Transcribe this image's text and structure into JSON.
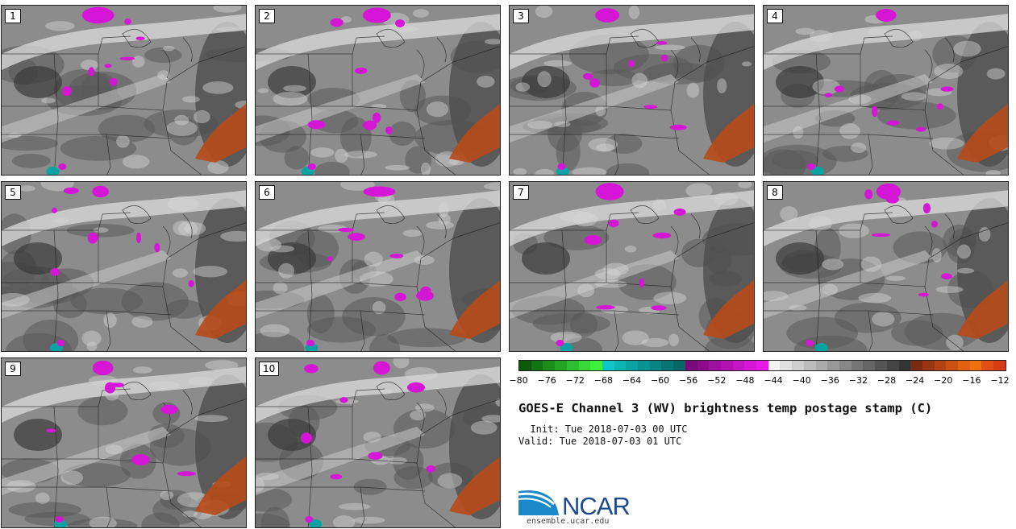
{
  "stamps": [
    {
      "label": "1"
    },
    {
      "label": "2"
    },
    {
      "label": "3"
    },
    {
      "label": "4"
    },
    {
      "label": "5"
    },
    {
      "label": "6"
    },
    {
      "label": "7"
    },
    {
      "label": "8"
    },
    {
      "label": "9"
    },
    {
      "label": "10"
    }
  ],
  "colorbar": {
    "tick_labels": [
      "−80",
      "−76",
      "−72",
      "−68",
      "−64",
      "−60",
      "−56",
      "−52",
      "−48",
      "−44",
      "−40",
      "−36",
      "−32",
      "−28",
      "−24",
      "−20",
      "−16",
      "−12"
    ],
    "colors": [
      "#0a5a0a",
      "#127312",
      "#1b8c1b",
      "#25a625",
      "#2ebf2e",
      "#36d936",
      "#3df03d",
      "#0ec6c6",
      "#0cb4b4",
      "#0aa3a3",
      "#099393",
      "#088484",
      "#077575",
      "#066767",
      "#7a0a7a",
      "#8c0c8c",
      "#9e109e",
      "#b212b2",
      "#c414c4",
      "#d616d6",
      "#e818e8",
      "#f2f2f2",
      "#e0e0e0",
      "#cecece",
      "#bcbcbc",
      "#aaaaaa",
      "#989898",
      "#878787",
      "#767676",
      "#656565",
      "#545454",
      "#444444",
      "#333333",
      "#7a2a10",
      "#963510",
      "#b24210",
      "#cc5010",
      "#e26010",
      "#f07010",
      "#e05014",
      "#d43c14"
    ]
  },
  "title": "GOES-E Channel 3 (WV) brightness temp postage stamp (C)",
  "init": "  Init: Tue 2018-07-03 00 UTC",
  "valid": "Valid: Tue 2018-07-03 01 UTC",
  "logo": {
    "text": "NCAR",
    "url": "ensemble.ucar.edu"
  },
  "palette": {
    "background_gray": "#8c8c8c",
    "moist_dark": "#5a5a5a",
    "dry_light": "#dcdcdc",
    "cold_cloud_magenta": "#d616d6",
    "very_cold_cyan": "#0aa3a3",
    "warm_orange": "#b84a18"
  }
}
